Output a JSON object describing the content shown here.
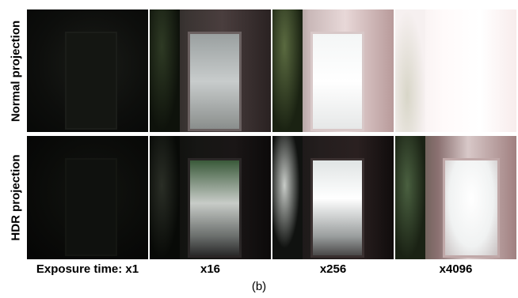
{
  "row_labels": [
    "Normal projection",
    "HDR projection"
  ],
  "column_labels": [
    "Exposure time: x1",
    "x16",
    "x256",
    "x4096"
  ],
  "caption": "(b)"
}
